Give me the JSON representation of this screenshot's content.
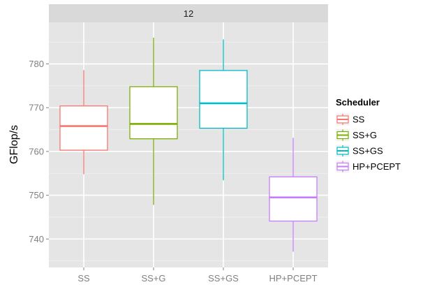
{
  "chart_data": {
    "type": "box",
    "facet_label": "12",
    "xlabel": "",
    "ylabel": "GFlop/s",
    "categories": [
      "SS",
      "SS+G",
      "SS+GS",
      "HP+PCEPT"
    ],
    "ylim": [
      733.5,
      789.5
    ],
    "yticks": [
      740,
      750,
      760,
      770,
      780
    ],
    "grid": true,
    "legend": {
      "title": "Scheduler",
      "position": "right",
      "entries": [
        "SS",
        "SS+G",
        "SS+GS",
        "HP+PCEPT"
      ]
    },
    "colors": [
      "#F8766D",
      "#7CAE00",
      "#00BFC4",
      "#C77CFF"
    ],
    "panel_color": "#e5e5e5",
    "strip_color": "#d9d9d9",
    "boxes": [
      {
        "name": "SS",
        "whisker_low": 754.8,
        "q1": 760.3,
        "median": 765.8,
        "q3": 770.4,
        "whisker_high": 778.6
      },
      {
        "name": "SS+G",
        "whisker_low": 747.8,
        "q1": 762.9,
        "median": 766.3,
        "q3": 774.8,
        "whisker_high": 786.0
      },
      {
        "name": "SS+GS",
        "whisker_low": 753.4,
        "q1": 765.3,
        "median": 771.0,
        "q3": 778.5,
        "whisker_high": 785.6
      },
      {
        "name": "HP+PCEPT",
        "whisker_low": 737.1,
        "q1": 744.1,
        "median": 749.5,
        "q3": 754.2,
        "whisker_high": 763.1
      }
    ]
  }
}
